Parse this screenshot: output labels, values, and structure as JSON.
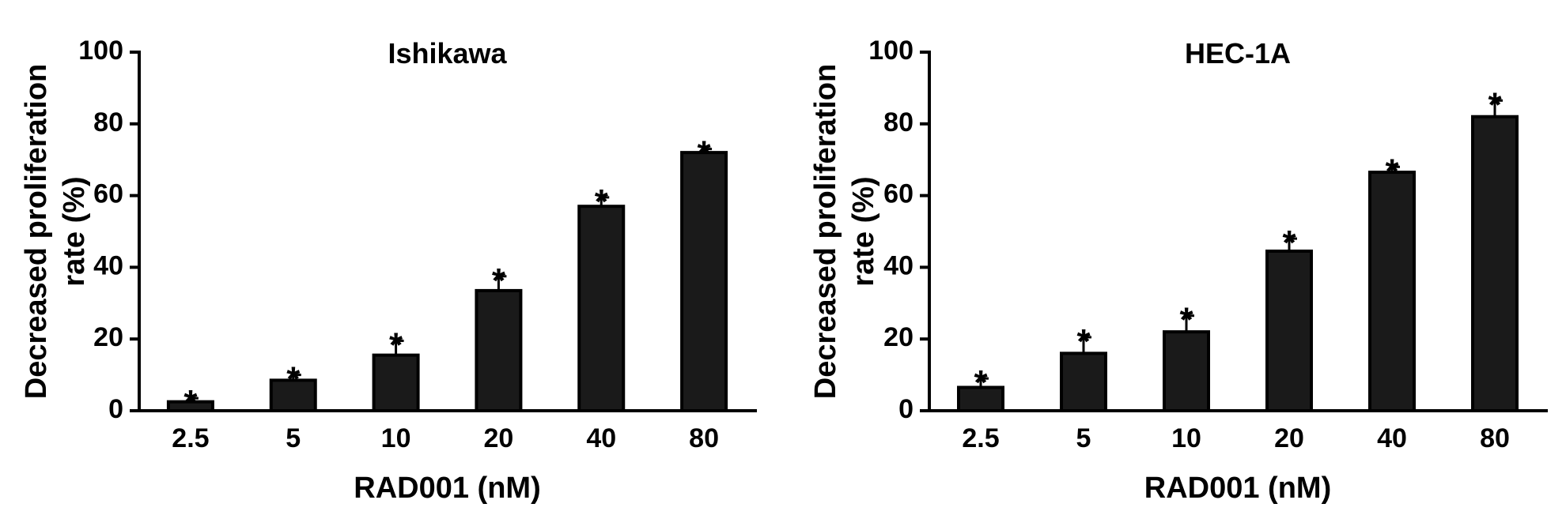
{
  "chart_data": [
    {
      "type": "bar",
      "title": "Ishikawa",
      "xlabel": "RAD001 (nM)",
      "ylabel": [
        "Decreased proliferation",
        "rate (%)"
      ],
      "ylim": [
        0,
        100
      ],
      "yticks": [
        0,
        20,
        40,
        60,
        80,
        100
      ],
      "categories": [
        "2.5",
        "5",
        "10",
        "20",
        "40",
        "80"
      ],
      "values": [
        2.5,
        8.5,
        15.5,
        33.5,
        57,
        72
      ],
      "errors": [
        1,
        1.5,
        4,
        4,
        2.5,
        1
      ],
      "significance": [
        "*",
        "*",
        "*",
        "*",
        "*",
        "*"
      ],
      "bar_color": "#1a1a1a",
      "grid": false,
      "legend": "none"
    },
    {
      "type": "bar",
      "title": "HEC-1A",
      "xlabel": "RAD001 (nM)",
      "ylabel": [
        "Decreased proliferation",
        "rate (%)"
      ],
      "ylim": [
        0,
        100
      ],
      "yticks": [
        0,
        20,
        40,
        60,
        80,
        100
      ],
      "categories": [
        "2.5",
        "5",
        "10",
        "20",
        "40",
        "80"
      ],
      "values": [
        6.5,
        16,
        22,
        44.5,
        66.5,
        82
      ],
      "errors": [
        2.5,
        4.5,
        4.5,
        3.5,
        1.5,
        4.5
      ],
      "significance": [
        "*",
        "*",
        "*",
        "*",
        "*",
        "*"
      ],
      "bar_color": "#1a1a1a",
      "grid": false,
      "legend": "none"
    }
  ]
}
